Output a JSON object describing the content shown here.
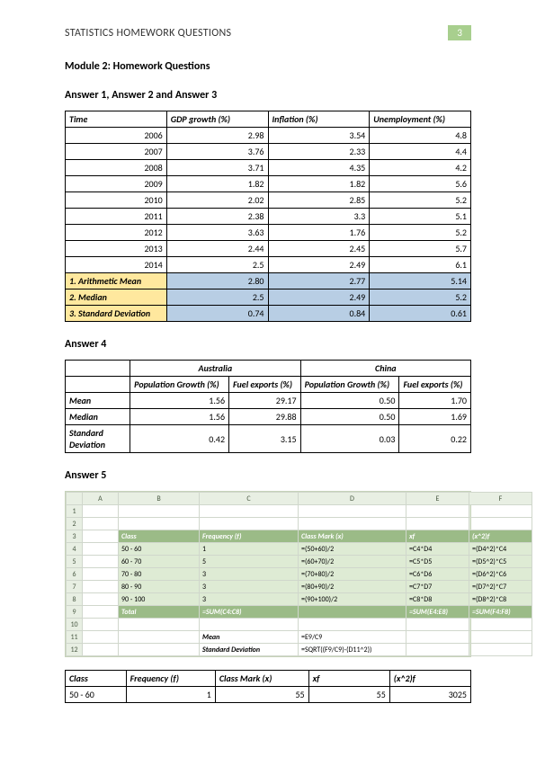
{
  "header": {
    "title": "STATISTICS HOMEWORK QUESTIONS",
    "page_number": "3"
  },
  "module_heading": "Module 2: Homework Questions",
  "answers_1_3": {
    "heading": "Answer 1, Answer 2 and Answer 3",
    "columns": [
      "Time",
      "GDP growth (%)",
      "Inflation (%)",
      "Unemployment (%)"
    ],
    "rows": [
      [
        "2006",
        "2.98",
        "3.54",
        "4.8"
      ],
      [
        "2007",
        "3.76",
        "2.33",
        "4.4"
      ],
      [
        "2008",
        "3.71",
        "4.35",
        "4.2"
      ],
      [
        "2009",
        "1.82",
        "1.82",
        "5.6"
      ],
      [
        "2010",
        "2.02",
        "2.85",
        "5.2"
      ],
      [
        "2011",
        "2.38",
        "3.3",
        "5.1"
      ],
      [
        "2012",
        "3.63",
        "1.76",
        "5.2"
      ],
      [
        "2013",
        "2.44",
        "2.45",
        "5.7"
      ],
      [
        "2014",
        "2.5",
        "2.49",
        "6.1"
      ]
    ],
    "summary": [
      [
        "1. Arithmetic Mean",
        "2.80",
        "2.77",
        "5.14"
      ],
      [
        "2. Median",
        "2.5",
        "2.49",
        "5.2"
      ],
      [
        "3. Standard Deviation",
        "0.74",
        "0.84",
        "0.61"
      ]
    ]
  },
  "answer4": {
    "heading": "Answer 4",
    "group_headers": [
      "Australia",
      "China"
    ],
    "sub_headers": [
      "Population Growth (%)",
      "Fuel exports (%)",
      "Population Growth (%)",
      "Fuel exports (%)"
    ],
    "rows": [
      [
        "Mean",
        "1.56",
        "29.17",
        "0.50",
        "1.70"
      ],
      [
        "Median",
        "1.56",
        "29.88",
        "0.50",
        "1.69"
      ],
      [
        "Standard Deviation",
        "0.42",
        "3.15",
        "0.03",
        "0.22"
      ]
    ]
  },
  "answer5": {
    "heading": "Answer 5",
    "spreadsheet": {
      "col_letters": [
        "",
        "A",
        "B",
        "C",
        "D",
        "E",
        "F"
      ],
      "rows": [
        {
          "n": "1",
          "cells": [
            "",
            "",
            "",
            "",
            "",
            ""
          ]
        },
        {
          "n": "2",
          "cells": [
            "",
            "",
            "",
            "",
            "",
            ""
          ]
        },
        {
          "n": "3",
          "cells": [
            "",
            "Class",
            "Frequency (f)",
            "Class Mark (x)",
            "xf",
            "(x^2)f"
          ],
          "cls": "g-hdr"
        },
        {
          "n": "4",
          "cells": [
            "",
            "50 - 60",
            "1",
            "=(50+60)/2",
            "=C4*D4",
            "=(D4^2)*C4"
          ],
          "cls": "g-body"
        },
        {
          "n": "5",
          "cells": [
            "",
            "60 - 70",
            "5",
            "=(60+70)/2",
            "=C5*D5",
            "=(D5^2)*C5"
          ],
          "cls": "g-body"
        },
        {
          "n": "6",
          "cells": [
            "",
            "70 - 80",
            "3",
            "=(70+80)/2",
            "=C6*D6",
            "=(D6^2)*C6"
          ],
          "cls": "g-body"
        },
        {
          "n": "7",
          "cells": [
            "",
            "80 - 90",
            "3",
            "=(80+90)/2",
            "=C7*D7",
            "=(D7^2)*C7"
          ],
          "cls": "g-body"
        },
        {
          "n": "8",
          "cells": [
            "",
            "90 - 100",
            "3",
            "=(90+100)/2",
            "=C8*D8",
            "=(D8^2)*C8"
          ],
          "cls": "g-body"
        },
        {
          "n": "9",
          "cells": [
            "",
            "Total",
            "=SUM(C4:C8)",
            "",
            "=SUM(E4:E8)",
            "=SUM(F4:F8)"
          ],
          "cls": "g-foot"
        },
        {
          "n": "10",
          "cells": [
            "",
            "",
            "",
            "",
            "",
            ""
          ]
        },
        {
          "n": "11",
          "cells": [
            "",
            "",
            "Mean",
            "=E9/C9",
            "",
            ""
          ],
          "cls": "calc"
        },
        {
          "n": "12",
          "cells": [
            "",
            "",
            "Standard Deviation",
            "=SQRT((F9/C9)-(D11^2))",
            "",
            ""
          ],
          "cls": "calc"
        }
      ]
    },
    "result_table": {
      "columns": [
        "Class",
        "Frequency (f)",
        "Class Mark (x)",
        "xf",
        "(x^2)f"
      ],
      "rows": [
        [
          "50 - 60",
          "1",
          "55",
          "55",
          "3025"
        ]
      ]
    }
  },
  "colors": {
    "page_badge_bg": "#a8cf8e",
    "summary_label_bg": "#ffe89e",
    "summary_val_bg": "#b8cee4",
    "ss_header_bg": "#9bbb87",
    "ss_body_bg": "#deebd4"
  }
}
